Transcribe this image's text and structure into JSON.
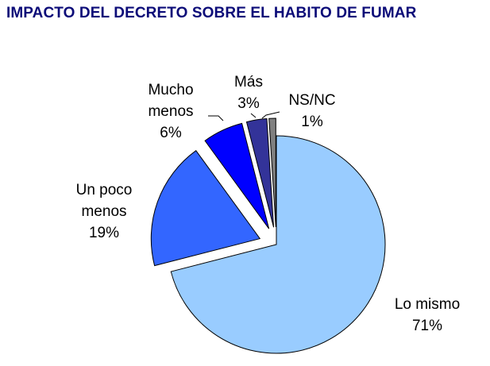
{
  "chart_data": {
    "type": "pie",
    "title": "IMPACTO DEL DECRETO SOBRE EL HABITO DE FUMAR",
    "slices": [
      {
        "label_lines": [
          "Lo mismo"
        ],
        "value": 71,
        "value_label": "71%",
        "color": "#99ccff",
        "exploded": false
      },
      {
        "label_lines": [
          "Un poco",
          "menos"
        ],
        "value": 19,
        "value_label": "19%",
        "color": "#3366ff",
        "exploded": true
      },
      {
        "label_lines": [
          "Mucho",
          "menos"
        ],
        "value": 6,
        "value_label": "6%",
        "color": "#0000ff",
        "exploded": true
      },
      {
        "label_lines": [
          "Más"
        ],
        "value": 3,
        "value_label": "3%",
        "color": "#333399",
        "exploded": true
      },
      {
        "label_lines": [
          "NS/NC"
        ],
        "value": 1,
        "value_label": "1%",
        "color": "#808080",
        "exploded": true
      }
    ],
    "legend": "none"
  }
}
